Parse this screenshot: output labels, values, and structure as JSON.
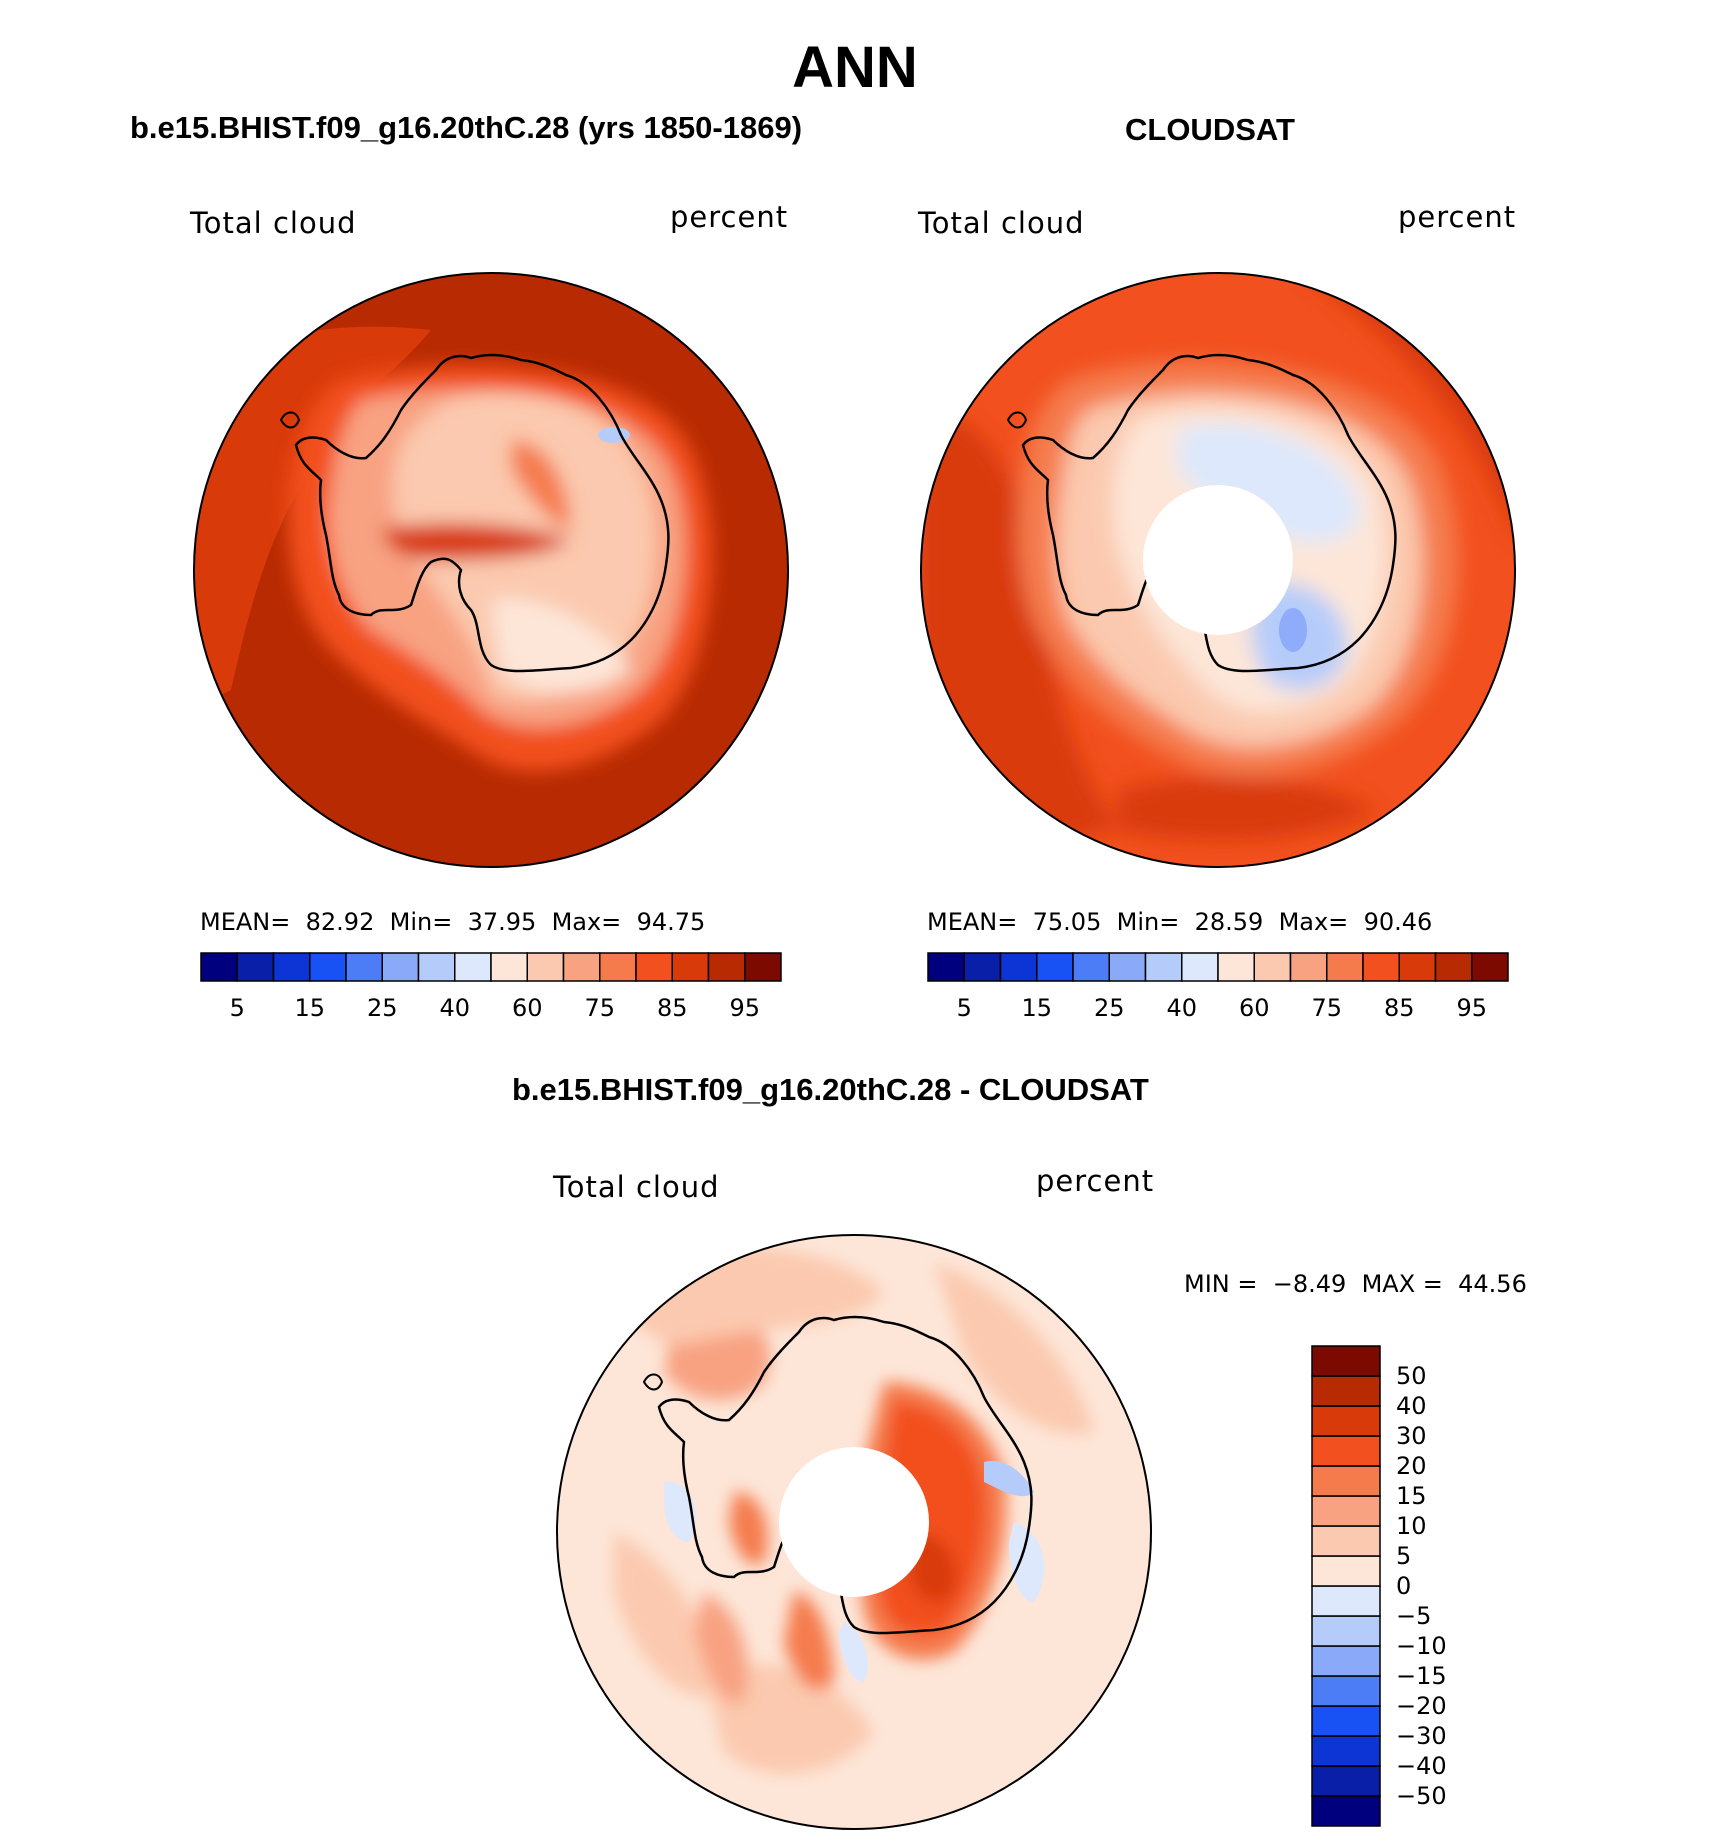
{
  "title": "ANN",
  "panels": [
    {
      "id": "model",
      "title": "b.e15.BHIST.f09_g16.20thC.28 (yrs 1850-1869)",
      "variable": "Total cloud",
      "units": "percent",
      "stats": {
        "mean_label": "MEAN=",
        "mean": "82.92",
        "min_label": "Min=",
        "min": "37.95",
        "max_label": "Max=",
        "max": "94.75"
      }
    },
    {
      "id": "obs",
      "title": "CLOUDSAT",
      "variable": "Total cloud",
      "units": "percent",
      "stats": {
        "mean_label": "MEAN=",
        "mean": "75.05",
        "min_label": "Min=",
        "min": "28.59",
        "max_label": "Max=",
        "max": "90.46"
      }
    },
    {
      "id": "diff",
      "title": "b.e15.BHIST.f09_g16.20thC.28 - CLOUDSAT",
      "variable": "Total cloud",
      "units": "percent",
      "stats": {
        "min_label": "MIN =",
        "min": "−8.49",
        "max_label": "MAX =",
        "max": "44.56"
      }
    }
  ],
  "abs_colorbar": {
    "colors": [
      "#00007f",
      "#0a1fa8",
      "#0d35d6",
      "#1852f4",
      "#4c7df6",
      "#8aa9f8",
      "#b5ccfa",
      "#dde8fc",
      "#fde6d8",
      "#fbc9af",
      "#f8a282",
      "#f57b4d",
      "#f2501e",
      "#d93a0a",
      "#b82a02",
      "#7d0a00"
    ],
    "labels": [
      "5",
      "15",
      "25",
      "40",
      "60",
      "75",
      "85",
      "95"
    ]
  },
  "diff_colorbar": {
    "colors": [
      "#00007f",
      "#0a1fa8",
      "#0d35d6",
      "#1852f4",
      "#4c7df6",
      "#8aa9f8",
      "#b5ccfa",
      "#dde8fc",
      "#fde6d8",
      "#fbc9af",
      "#f8a282",
      "#f57b4d",
      "#f2501e",
      "#d93a0a",
      "#b82a02",
      "#7d0a00"
    ],
    "labels": [
      "50",
      "40",
      "30",
      "20",
      "15",
      "10",
      "5",
      "0",
      "−5",
      "−10",
      "−15",
      "−20",
      "−30",
      "−40",
      "−50"
    ]
  },
  "chart_data": [
    {
      "type": "heatmap",
      "title": "b.e15.BHIST.f09_g16.20thC.28 (yrs 1850-1869)",
      "projection": "south polar stereographic",
      "variable": "Total cloud",
      "units": "percent",
      "contour_levels": [
        5,
        10,
        15,
        20,
        25,
        30,
        40,
        50,
        60,
        70,
        75,
        80,
        85,
        90,
        95
      ],
      "mean": 82.92,
      "min": 37.95,
      "max": 94.75,
      "approx_regions": {
        "southern_ocean": 92,
        "antarctic_coast": 85,
        "interior_plateau": 60
      }
    },
    {
      "type": "heatmap",
      "title": "CLOUDSAT",
      "projection": "south polar stereographic",
      "variable": "Total cloud",
      "units": "percent",
      "contour_levels": [
        5,
        10,
        15,
        20,
        25,
        30,
        40,
        50,
        60,
        70,
        75,
        80,
        85,
        90,
        95
      ],
      "mean": 75.05,
      "min": 28.59,
      "max": 90.46,
      "missing_data": "pole hole (south of ~82S)",
      "approx_regions": {
        "southern_ocean": 87,
        "antarctic_coast": 70,
        "east_antarctica_interior": 45
      }
    },
    {
      "type": "heatmap",
      "title": "b.e15.BHIST.f09_g16.20thC.28 - CLOUDSAT",
      "projection": "south polar stereographic",
      "variable": "Total cloud",
      "units": "percent",
      "contour_levels": [
        -50,
        -40,
        -30,
        -20,
        -15,
        -10,
        -5,
        0,
        5,
        10,
        15,
        20,
        30,
        40,
        50
      ],
      "min": -8.49,
      "max": 44.56,
      "approx_regions": {
        "southern_ocean": 5,
        "east_antarctica_interior": 35,
        "coastal_bands": -3
      }
    }
  ]
}
